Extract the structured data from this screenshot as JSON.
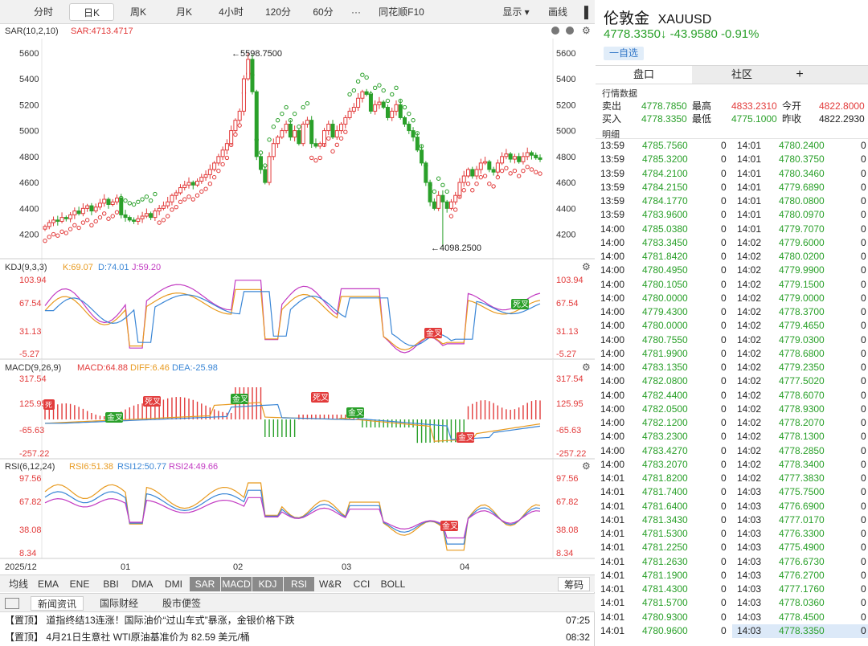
{
  "toolbar": {
    "periods": [
      "分时",
      "日K",
      "周K",
      "月K",
      "4小时",
      "120分",
      "60分"
    ],
    "more": "···",
    "f10": "同花顺F10",
    "display": "显示 ▾",
    "draw": "画线"
  },
  "main_chart": {
    "sar_label": "SAR(10,2,10)",
    "sar_value": "SAR:4713.4717",
    "y_ticks": [
      "5600",
      "5400",
      "5200",
      "5000",
      "4800",
      "4600",
      "4400",
      "4200"
    ],
    "high_annot": "5598.7500",
    "low_annot": "4098.2500"
  },
  "kdj": {
    "label": "KDJ(9,3,3)",
    "k": "K:69.07",
    "d": "D:74.01",
    "j": "J:59.20",
    "ticks": [
      "103.94",
      "67.54",
      "31.13",
      "-5.27"
    ],
    "signals": [
      "金叉",
      "死叉"
    ]
  },
  "macd": {
    "label": "MACD(9,26,9)",
    "macd": "MACD:64.88",
    "diff": "DIFF:6.46",
    "dea": "DEA:-25.98",
    "ticks": [
      "317.54",
      "125.95",
      "-65.63",
      "-257.22"
    ],
    "signals": [
      "死叉",
      "金叉",
      "死叉",
      "金叉",
      "死叉",
      "金叉"
    ]
  },
  "rsi": {
    "label": "RSI(6,12,24)",
    "rsi6": "RSI6:51.38",
    "rsi12": "RSI12:50.77",
    "rsi24": "RSI24:49.66",
    "ticks": [
      "97.56",
      "67.82",
      "38.08",
      "8.34"
    ],
    "signals": [
      "金叉"
    ]
  },
  "x_axis": [
    "2025/12",
    "01",
    "02",
    "03",
    "04"
  ],
  "indicators": [
    "均线",
    "EMA",
    "ENE",
    "BBI",
    "DMA",
    "DMI",
    "SAR",
    "MACD",
    "KDJ",
    "RSI",
    "W&R",
    "CCI",
    "BOLL"
  ],
  "indicators_on": [
    "SAR",
    "MACD",
    "KDJ",
    "RSI"
  ],
  "chips_label": "筹码",
  "news_tabs": [
    "新闻资讯",
    "国际财经",
    "股市便签"
  ],
  "news": [
    {
      "text": "【置顶】 道指终结13连涨！国际油价“过山车式”暴涨，金银价格下跌",
      "time": "07:25"
    },
    {
      "text": "【置顶】 4月21日生意社 WTI原油基准价为 82.59 美元/桶",
      "time": "08:32"
    }
  ],
  "quote": {
    "name": "伦敦金",
    "code": "XAUUSD",
    "price": "4778.3350↓ -43.9580 -0.91%",
    "fav": "一自选",
    "tabs": [
      "盘口",
      "社区"
    ],
    "add": "+",
    "section1": "行情数据",
    "rows": [
      {
        "l1": "卖出",
        "v1": "4778.7850",
        "l2": "最高",
        "v2": "4833.2310",
        "l3": "今开",
        "v3": "4822.8000"
      },
      {
        "l1": "买入",
        "v1": "4778.3350",
        "l2": "最低",
        "v2": "4775.1000",
        "l3": "昨收",
        "v3": "4822.2930"
      }
    ],
    "section2": "明细"
  },
  "trades_left": [
    [
      "13:59",
      "4785.7560",
      "0"
    ],
    [
      "13:59",
      "4785.3200",
      "0"
    ],
    [
      "13:59",
      "4784.2100",
      "0"
    ],
    [
      "13:59",
      "4784.2150",
      "0"
    ],
    [
      "13:59",
      "4784.1770",
      "0"
    ],
    [
      "13:59",
      "4783.9600",
      "0"
    ],
    [
      "14:00",
      "4785.0380",
      "0"
    ],
    [
      "14:00",
      "4783.3450",
      "0"
    ],
    [
      "14:00",
      "4781.8420",
      "0"
    ],
    [
      "14:00",
      "4780.4950",
      "0"
    ],
    [
      "14:00",
      "4780.1050",
      "0"
    ],
    [
      "14:00",
      "4780.0000",
      "0"
    ],
    [
      "14:00",
      "4779.4300",
      "0"
    ],
    [
      "14:00",
      "4780.0000",
      "0"
    ],
    [
      "14:00",
      "4780.7550",
      "0"
    ],
    [
      "14:00",
      "4781.9900",
      "0"
    ],
    [
      "14:00",
      "4783.1350",
      "0"
    ],
    [
      "14:00",
      "4782.0800",
      "0"
    ],
    [
      "14:00",
      "4782.4400",
      "0"
    ],
    [
      "14:00",
      "4782.0500",
      "0"
    ],
    [
      "14:00",
      "4782.1200",
      "0"
    ],
    [
      "14:00",
      "4783.2300",
      "0"
    ],
    [
      "14:00",
      "4783.4270",
      "0"
    ],
    [
      "14:00",
      "4783.2070",
      "0"
    ],
    [
      "14:01",
      "4781.8200",
      "0"
    ],
    [
      "14:01",
      "4781.7400",
      "0"
    ],
    [
      "14:01",
      "4781.6400",
      "0"
    ],
    [
      "14:01",
      "4781.3430",
      "0"
    ],
    [
      "14:01",
      "4781.5300",
      "0"
    ],
    [
      "14:01",
      "4781.2250",
      "0"
    ],
    [
      "14:01",
      "4781.2630",
      "0"
    ],
    [
      "14:01",
      "4781.1900",
      "0"
    ],
    [
      "14:01",
      "4781.4300",
      "0"
    ],
    [
      "14:01",
      "4781.5700",
      "0"
    ],
    [
      "14:01",
      "4780.9300",
      "0"
    ],
    [
      "14:01",
      "4780.9600",
      "0"
    ]
  ],
  "trades_right": [
    [
      "14:01",
      "4780.2400",
      "0"
    ],
    [
      "14:01",
      "4780.3750",
      "0"
    ],
    [
      "14:01",
      "4780.3460",
      "0"
    ],
    [
      "14:01",
      "4779.6890",
      "0"
    ],
    [
      "14:01",
      "4780.0800",
      "0"
    ],
    [
      "14:01",
      "4780.0970",
      "0"
    ],
    [
      "14:01",
      "4779.7070",
      "0"
    ],
    [
      "14:02",
      "4779.6000",
      "0"
    ],
    [
      "14:02",
      "4780.0200",
      "0"
    ],
    [
      "14:02",
      "4779.9900",
      "0"
    ],
    [
      "14:02",
      "4779.1500",
      "0"
    ],
    [
      "14:02",
      "4779.0000",
      "0"
    ],
    [
      "14:02",
      "4778.3700",
      "0"
    ],
    [
      "14:02",
      "4779.4650",
      "0"
    ],
    [
      "14:02",
      "4779.0300",
      "0"
    ],
    [
      "14:02",
      "4778.6800",
      "0"
    ],
    [
      "14:02",
      "4779.2350",
      "0"
    ],
    [
      "14:02",
      "4777.5020",
      "0"
    ],
    [
      "14:02",
      "4778.6070",
      "0"
    ],
    [
      "14:02",
      "4778.9300",
      "0"
    ],
    [
      "14:02",
      "4778.2070",
      "0"
    ],
    [
      "14:02",
      "4778.1300",
      "0"
    ],
    [
      "14:02",
      "4778.2850",
      "0"
    ],
    [
      "14:02",
      "4778.3400",
      "0"
    ],
    [
      "14:02",
      "4777.3830",
      "0"
    ],
    [
      "14:03",
      "4775.7500",
      "0"
    ],
    [
      "14:03",
      "4776.6900",
      "0"
    ],
    [
      "14:03",
      "4777.0170",
      "0"
    ],
    [
      "14:03",
      "4776.3300",
      "0"
    ],
    [
      "14:03",
      "4775.4900",
      "0"
    ],
    [
      "14:03",
      "4776.6730",
      "0"
    ],
    [
      "14:03",
      "4776.2700",
      "0"
    ],
    [
      "14:03",
      "4777.1760",
      "0"
    ],
    [
      "14:03",
      "4778.0360",
      "0"
    ],
    [
      "14:03",
      "4778.4500",
      "0"
    ],
    [
      "14:03",
      "4778.3350",
      "0"
    ]
  ],
  "chart_data": {
    "type": "candlestick",
    "x_labels": [
      "2025/12",
      "01",
      "02",
      "03",
      "04"
    ],
    "y_range": [
      4098.25,
      5598.75
    ],
    "close": [
      4260,
      4290,
      4310,
      4300,
      4330,
      4320,
      4350,
      4380,
      4360,
      4400,
      4420,
      4380,
      4410,
      4440,
      4470,
      4430,
      4450,
      4480,
      4350,
      4330,
      4310,
      4300,
      4320,
      4340,
      4360,
      4330,
      4380,
      4400,
      4420,
      4450,
      4500,
      4520,
      4560,
      4580,
      4600,
      4580,
      4610,
      4640,
      4660,
      4700,
      4750,
      4800,
      4850,
      4900,
      5000,
      5080,
      5150,
      5400,
      5550,
      5300,
      4800,
      4700,
      4600,
      4800,
      4900,
      4950,
      5000,
      5050,
      4950,
      5000,
      4900,
      5050,
      5080,
      4900,
      4880,
      4900,
      5000,
      5050,
      4950,
      5000,
      5050,
      5100,
      5150,
      5180,
      5250,
      5300,
      5280,
      5150,
      5200,
      5220,
      5180,
      5100,
      5150,
      5200,
      5100,
      5050,
      5000,
      4950,
      4850,
      4750,
      4600,
      4450,
      4400,
      4500,
      4450,
      4400,
      4450,
      4500,
      4600,
      4650,
      4700,
      4650,
      4700,
      4750,
      4760,
      4700,
      4680,
      4750,
      4800,
      4820,
      4780,
      4800,
      4760,
      4800,
      4830,
      4810,
      4790,
      4778
    ]
  }
}
